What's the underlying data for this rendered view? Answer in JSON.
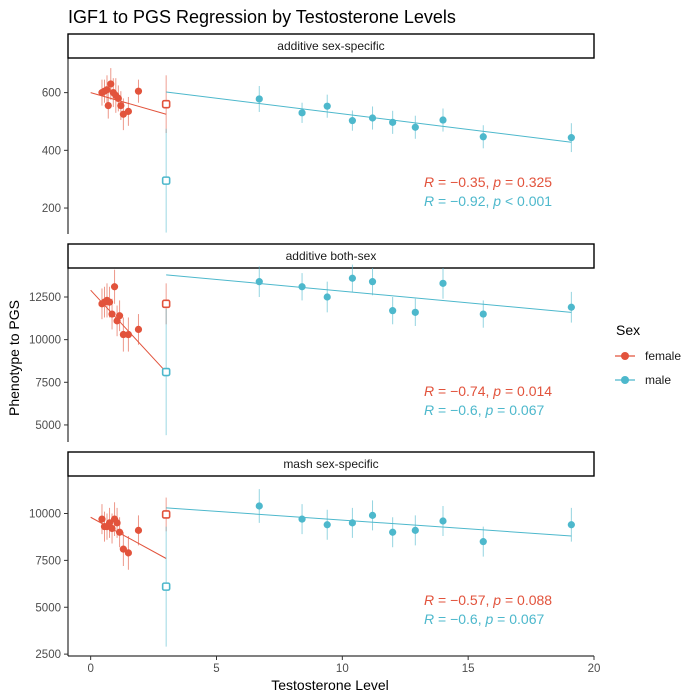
{
  "colors": {
    "female": "#E2533C",
    "male": "#4DB8CC"
  },
  "chart_data": {
    "type": "scatter",
    "title": "IGF1 to PGS Regression by Testosterone Levels",
    "xlabel": "Testosterone Level",
    "ylabel": "Phenotype to PGS",
    "xlim": [
      -0.9,
      20.0
    ],
    "xticks": [
      0,
      5,
      10,
      15,
      20
    ],
    "grid": false,
    "legend": {
      "title": "Sex",
      "position": "right",
      "entries": [
        "female",
        "male"
      ]
    },
    "panels": [
      {
        "strip": "additive sex-specific",
        "ylim": [
          110,
          720
        ],
        "yticks": [
          200,
          400,
          600
        ],
        "female": {
          "points": [
            [
              0.45,
              600,
              45
            ],
            [
              0.55,
              605,
              40
            ],
            [
              0.65,
              610,
              50
            ],
            [
              0.7,
              555,
              45
            ],
            [
              0.8,
              630,
              55
            ],
            [
              0.9,
              600,
              50
            ],
            [
              1.0,
              590,
              60
            ],
            [
              1.1,
              580,
              45
            ],
            [
              1.2,
              555,
              50
            ],
            [
              1.3,
              525,
              55
            ],
            [
              1.5,
              535,
              50
            ],
            [
              1.9,
              605,
              40
            ]
          ],
          "open_point": [
            3.0,
            560,
            100
          ],
          "fit": [
            [
              0.0,
              600
            ],
            [
              3.0,
              525
            ]
          ],
          "annotation": {
            "R": "−0.35",
            "p": "= 0.325"
          }
        },
        "male": {
          "points": [
            [
              6.7,
              578,
              45
            ],
            [
              8.4,
              530,
              35
            ],
            [
              9.4,
              553,
              40
            ],
            [
              10.4,
              503,
              35
            ],
            [
              11.2,
              512,
              40
            ],
            [
              12.0,
              497,
              40
            ],
            [
              12.9,
              480,
              40
            ],
            [
              14.0,
              505,
              40
            ],
            [
              15.6,
              447,
              40
            ],
            [
              19.1,
              444,
              50
            ]
          ],
          "open_point": [
            3.0,
            295,
            180
          ],
          "fit": [
            [
              3.0,
              602
            ],
            [
              19.1,
              428
            ]
          ],
          "annotation": {
            "R": "−0.92",
            "p": "< 0.001"
          }
        }
      },
      {
        "strip": "additive both-sex",
        "ylim": [
          4000,
          14200
        ],
        "yticks": [
          5000,
          7500,
          10000,
          12500
        ],
        "female": {
          "points": [
            [
              0.45,
              12100,
              900
            ],
            [
              0.55,
              12200,
              900
            ],
            [
              0.65,
              12300,
              1000
            ],
            [
              0.75,
              12200,
              900
            ],
            [
              0.85,
              11500,
              900
            ],
            [
              0.95,
              13100,
              1000
            ],
            [
              1.05,
              11100,
              900
            ],
            [
              1.15,
              11400,
              900
            ],
            [
              1.3,
              10300,
              1000
            ],
            [
              1.5,
              10300,
              1000
            ],
            [
              1.9,
              10600,
              900
            ]
          ],
          "open_point": [
            3.0,
            12100,
            1200
          ],
          "fit": [
            [
              0.0,
              12900
            ],
            [
              3.0,
              8100
            ]
          ],
          "annotation": {
            "R": "−0.74",
            "p": "= 0.014"
          }
        },
        "male": {
          "points": [
            [
              6.7,
              13400,
              900
            ],
            [
              8.4,
              13100,
              800
            ],
            [
              9.4,
              12500,
              900
            ],
            [
              10.4,
              13600,
              800
            ],
            [
              11.2,
              13400,
              800
            ],
            [
              12.0,
              11700,
              800
            ],
            [
              12.9,
              11600,
              800
            ],
            [
              14.0,
              13300,
              900
            ],
            [
              15.6,
              11500,
              800
            ],
            [
              19.1,
              11900,
              900
            ]
          ],
          "open_point": [
            3.0,
            8100,
            3700
          ],
          "fit": [
            [
              3.0,
              13800
            ],
            [
              19.1,
              11600
            ]
          ],
          "annotation": {
            "R": "−0.6",
            "p": "= 0.067"
          }
        }
      },
      {
        "strip": "mash sex-specific",
        "ylim": [
          2400,
          12000
        ],
        "yticks": [
          2500,
          5000,
          7500,
          10000
        ],
        "female": {
          "points": [
            [
              0.45,
              9700,
              800
            ],
            [
              0.55,
              9300,
              800
            ],
            [
              0.65,
              9300,
              700
            ],
            [
              0.75,
              9500,
              800
            ],
            [
              0.85,
              9200,
              800
            ],
            [
              0.95,
              9700,
              900
            ],
            [
              1.05,
              9500,
              800
            ],
            [
              1.15,
              9000,
              800
            ],
            [
              1.3,
              8100,
              900
            ],
            [
              1.5,
              7900,
              900
            ],
            [
              1.9,
              9100,
              800
            ]
          ],
          "open_point": [
            3.0,
            9950,
            900
          ],
          "fit": [
            [
              0.0,
              9800
            ],
            [
              3.0,
              7600
            ]
          ],
          "annotation": {
            "R": "−0.57",
            "p": "= 0.088"
          }
        },
        "male": {
          "points": [
            [
              6.7,
              10400,
              900
            ],
            [
              8.4,
              9700,
              800
            ],
            [
              9.4,
              9400,
              800
            ],
            [
              10.4,
              9500,
              800
            ],
            [
              11.2,
              9900,
              800
            ],
            [
              12.0,
              9000,
              800
            ],
            [
              12.9,
              9100,
              800
            ],
            [
              14.0,
              9600,
              800
            ],
            [
              15.6,
              8500,
              800
            ],
            [
              19.1,
              9400,
              900
            ]
          ],
          "open_point": [
            3.0,
            6100,
            3200
          ],
          "fit": [
            [
              3.0,
              10300
            ],
            [
              19.1,
              8800
            ]
          ],
          "annotation": {
            "R": "−0.6",
            "p": "= 0.067"
          }
        }
      }
    ]
  }
}
